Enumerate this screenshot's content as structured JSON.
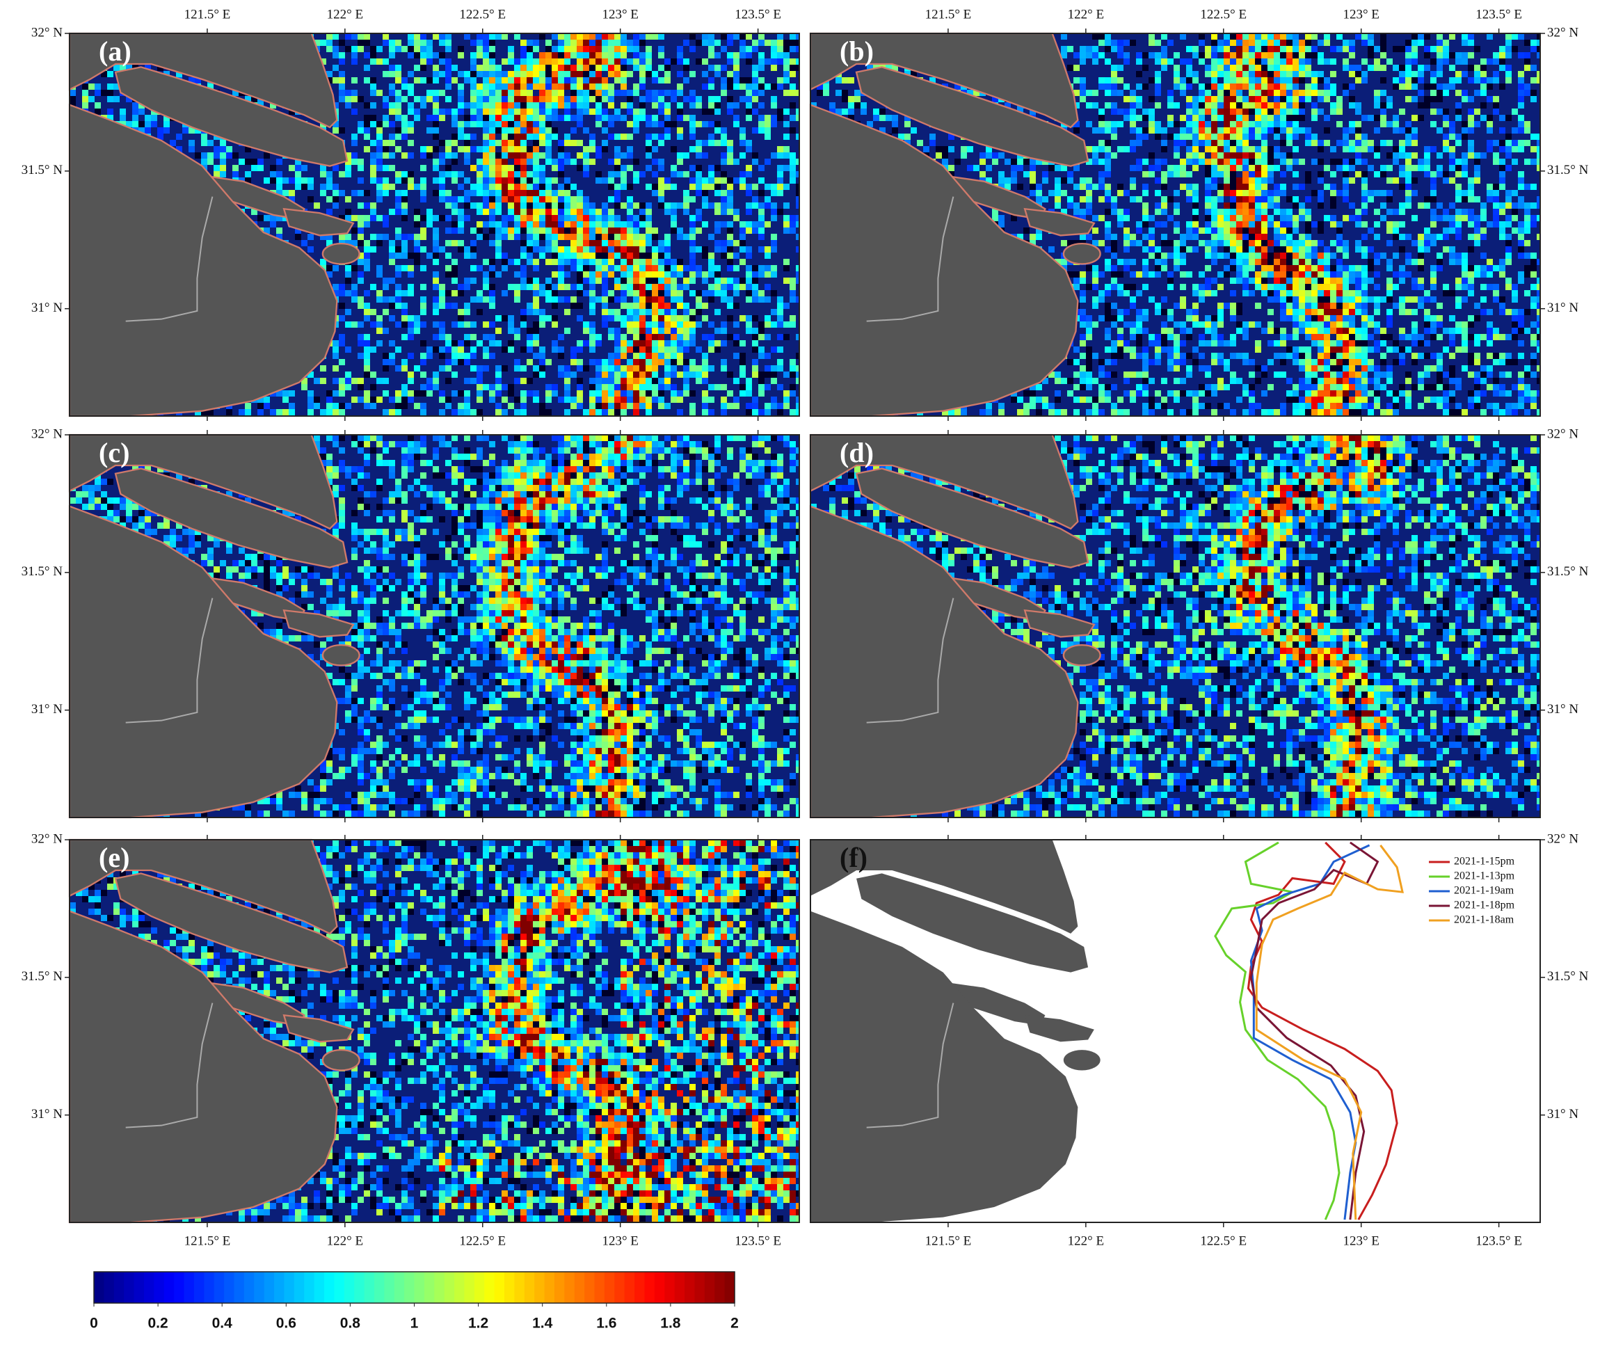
{
  "panels": {
    "labels": [
      "(a)",
      "(b)",
      "(c)",
      "(d)",
      "(e)",
      "(f)"
    ]
  },
  "chart_data": {
    "type": "line",
    "xlim": [
      121.0,
      123.65
    ],
    "ylim": [
      30.61,
      32.0
    ],
    "xticks": [
      {
        "value": 121.5,
        "label": "121.5° E"
      },
      {
        "value": 122,
        "label": "122° E"
      },
      {
        "value": 122.5,
        "label": "122.5° E"
      },
      {
        "value": 123,
        "label": "123° E"
      },
      {
        "value": 123.5,
        "label": "123.5° E"
      }
    ],
    "yticks": [
      {
        "value": 32,
        "label": "32° N"
      },
      {
        "value": 31.5,
        "label": "31.5° N"
      },
      {
        "value": 31,
        "label": "31° N"
      }
    ],
    "legend": "upper right",
    "series": [
      {
        "name": "2021-1-15pm",
        "color": "#c81e1e",
        "x": [
          122.87,
          122.94,
          122.9,
          122.75,
          122.7,
          122.62,
          122.6,
          122.64,
          122.6,
          122.59,
          122.64,
          122.79,
          122.94,
          123.06,
          123.11,
          123.13,
          123.09,
          123.04,
          122.99
        ],
        "values": [
          31.99,
          31.92,
          31.84,
          31.86,
          31.8,
          31.77,
          31.71,
          31.63,
          31.54,
          31.46,
          31.39,
          31.31,
          31.24,
          31.16,
          31.09,
          30.97,
          30.82,
          30.71,
          30.62
        ]
      },
      {
        "name": "2021-1-13pm",
        "color": "#66d12a",
        "x": [
          122.7,
          122.58,
          122.6,
          122.75,
          122.68,
          122.53,
          122.47,
          122.51,
          122.58,
          122.56,
          122.58,
          122.66,
          122.77,
          122.87,
          122.9,
          122.92,
          122.9,
          122.87
        ],
        "values": [
          31.99,
          31.92,
          31.84,
          31.81,
          31.77,
          31.75,
          31.65,
          31.58,
          31.52,
          31.41,
          31.31,
          31.2,
          31.13,
          31.03,
          30.94,
          30.79,
          30.69,
          30.62
        ]
      },
      {
        "name": "2021-1-19am",
        "color": "#1f5fd0",
        "x": [
          123.03,
          122.9,
          122.85,
          122.72,
          122.62,
          122.64,
          122.6,
          122.61,
          122.61,
          122.75,
          122.89,
          122.96,
          122.98,
          122.96,
          122.94
        ],
        "values": [
          31.98,
          31.92,
          31.84,
          31.8,
          31.75,
          31.67,
          31.56,
          31.45,
          31.28,
          31.2,
          31.13,
          31.01,
          30.9,
          30.79,
          30.62
        ]
      },
      {
        "name": "2021-1-18pm",
        "color": "#7a1535",
        "x": [
          122.96,
          123.06,
          123.02,
          122.9,
          122.83,
          122.7,
          122.64,
          122.62,
          122.6,
          122.62,
          122.73,
          122.89,
          122.98,
          123.01,
          122.98,
          122.96
        ],
        "values": [
          31.99,
          31.92,
          31.84,
          31.89,
          31.82,
          31.77,
          31.71,
          31.6,
          31.5,
          31.39,
          31.28,
          31.18,
          31.07,
          30.94,
          30.79,
          30.62
        ]
      },
      {
        "name": "2021-1-18am",
        "color": "#f0a020",
        "x": [
          123.07,
          123.13,
          123.15,
          123.06,
          122.94,
          122.89,
          122.77,
          122.68,
          122.64,
          122.62,
          122.62,
          122.79,
          122.94,
          123.0,
          122.97,
          122.98
        ],
        "values": [
          31.98,
          31.9,
          31.81,
          31.82,
          31.88,
          31.8,
          31.75,
          31.71,
          31.62,
          31.48,
          31.31,
          31.2,
          31.13,
          31.01,
          30.86,
          30.62
        ]
      }
    ]
  },
  "colorbar": {
    "lim": [
      0,
      2
    ],
    "ticks": [
      0,
      0.2,
      0.4,
      0.6,
      0.8,
      1,
      1.2,
      1.4,
      1.6,
      1.8,
      2
    ]
  }
}
